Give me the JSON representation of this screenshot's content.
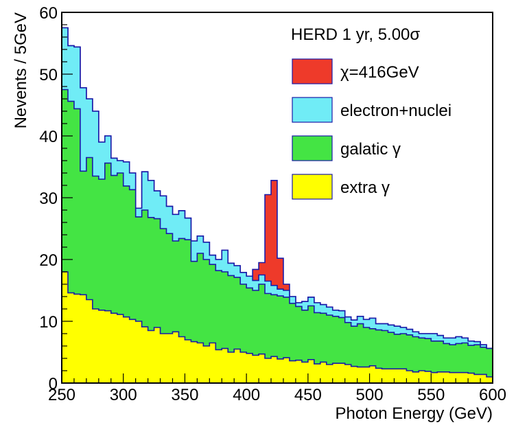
{
  "chart_data": {
    "type": "stacked-histogram",
    "title": "",
    "xlabel": "Photon Energy (GeV)",
    "ylabel": "Nevents / 5GeV",
    "xlim": [
      250,
      600
    ],
    "ylim": [
      0,
      60
    ],
    "bin_width": 5,
    "x_ticks": [
      250,
      300,
      350,
      400,
      450,
      500,
      550,
      600
    ],
    "y_ticks": [
      0,
      10,
      20,
      30,
      40,
      50,
      60
    ],
    "grid": false,
    "legend": {
      "placement": "top-right",
      "header": "HERD 1 yr, 5.00σ",
      "entries": [
        "χ=416GeV",
        "electron+nuclei",
        "galatic γ",
        "extra γ"
      ]
    },
    "series": [
      {
        "name": "extra γ",
        "color": "#ffff00",
        "values": [
          18.0,
          14.6,
          14.4,
          14.3,
          13.5,
          12.0,
          11.8,
          11.7,
          11.3,
          11.1,
          10.7,
          10.3,
          10.0,
          9.1,
          8.5,
          9.0,
          8.0,
          8.0,
          8.3,
          7.5,
          7.0,
          6.7,
          6.5,
          6.0,
          6.5,
          5.4,
          5.6,
          5.0,
          5.5,
          5.0,
          4.8,
          4.5,
          4.7,
          4.0,
          4.3,
          3.9,
          4.1,
          3.6,
          3.7,
          3.4,
          3.8,
          3.1,
          3.4,
          3.0,
          3.2,
          3.2,
          3.0,
          2.7,
          2.6,
          2.6,
          2.8,
          2.4,
          2.3,
          2.3,
          2.3,
          2.3,
          2.0,
          1.8,
          2.0,
          1.9,
          1.7,
          1.8,
          1.8,
          1.7,
          1.7,
          1.7,
          1.6,
          1.4,
          1.4,
          1.0
        ]
      },
      {
        "name": "galatic γ",
        "color": "#44e444",
        "values": [
          29.5,
          31.0,
          30.0,
          20.0,
          23.0,
          21.5,
          21.2,
          23.9,
          22.3,
          22.9,
          21.2,
          21.0,
          16.9,
          18.9,
          18.3,
          17.6,
          17.0,
          16.2,
          14.7,
          15.9,
          16.2,
          13.0,
          14.5,
          14.0,
          12.7,
          12.8,
          12.4,
          12.4,
          11.6,
          11.0,
          10.6,
          10.5,
          11.3,
          10.5,
          10.0,
          10.2,
          9.8,
          9.3,
          8.7,
          8.4,
          8.7,
          8.3,
          7.9,
          8.0,
          7.6,
          7.4,
          6.8,
          6.5,
          7.0,
          6.4,
          6.0,
          6.2,
          6.2,
          5.9,
          5.6,
          5.7,
          5.8,
          5.7,
          5.3,
          5.3,
          5.1,
          5.0,
          4.6,
          4.5,
          4.7,
          4.8,
          4.5,
          4.8,
          4.4,
          4.6
        ]
      },
      {
        "name": "electron+nuclei",
        "color": "#70ecf6",
        "values": [
          10.0,
          9.0,
          10.0,
          13.5,
          9.5,
          10.5,
          6.0,
          4.4,
          2.8,
          2.0,
          3.9,
          2.7,
          1.4,
          6.2,
          6.0,
          4.5,
          5.3,
          4.4,
          4.3,
          4.5,
          3.5,
          3.3,
          2.8,
          2.8,
          1.5,
          1.8,
          3.5,
          2.0,
          1.9,
          1.9,
          1.9,
          1.6,
          1.5,
          2.0,
          1.5,
          1.1,
          1.1,
          1.1,
          0.6,
          1.4,
          1.4,
          1.6,
          1.4,
          1.3,
          1.0,
          1.1,
          0.9,
          1.0,
          1.2,
          1.3,
          1.7,
          1.0,
          1.1,
          1.2,
          1.3,
          1.0,
          0.9,
          0.8,
          0.7,
          0.8,
          1.2,
          0.9,
          0.9,
          1.1,
          1.1,
          0.8,
          0.7,
          0.5,
          0.4,
          0.0
        ]
      },
      {
        "name": "χ=416GeV",
        "color": "#ee3a2a",
        "values": [
          0,
          0,
          0,
          0,
          0,
          0,
          0,
          0,
          0,
          0,
          0,
          0,
          0,
          0,
          0,
          0,
          0,
          0,
          0,
          0,
          0,
          0,
          0,
          0,
          0,
          0,
          0,
          0,
          0,
          0,
          0,
          1.8,
          2.0,
          14.0,
          17.0,
          5.0,
          1.0,
          0,
          0,
          0,
          0,
          0,
          0,
          0,
          0,
          0,
          0,
          0,
          0,
          0,
          0,
          0,
          0,
          0,
          0,
          0,
          0,
          0,
          0,
          0,
          0,
          0,
          0,
          0,
          0,
          0,
          0,
          0,
          0,
          0
        ]
      }
    ]
  }
}
